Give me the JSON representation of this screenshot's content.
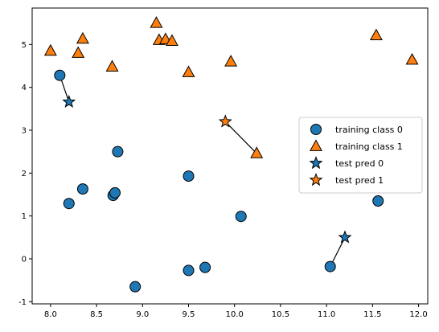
{
  "chart_data": {
    "type": "scatter",
    "title": "",
    "xlabel": "",
    "ylabel": "",
    "xlim": [
      7.8,
      12.1
    ],
    "ylim": [
      -1.05,
      5.85
    ],
    "xticks": [
      "8.0",
      "8.5",
      "9.0",
      "9.5",
      "10.0",
      "10.5",
      "11.0",
      "11.5",
      "12.0"
    ],
    "yticks": [
      "-1",
      "0",
      "1",
      "2",
      "3",
      "4",
      "5"
    ],
    "grid": false,
    "legend": {
      "placement": "center-right",
      "entries": [
        "training class 0",
        "training class 1",
        "test pred 0",
        "test pred 1"
      ]
    },
    "colors": {
      "class0": "#1f77b4",
      "class1": "#ff7f0e",
      "edge": "#000000"
    },
    "series": [
      {
        "name": "training class 0",
        "marker": "circle",
        "color": "#1f77b4",
        "points": [
          [
            8.1,
            4.28
          ],
          [
            8.2,
            1.29
          ],
          [
            8.35,
            1.63
          ],
          [
            8.68,
            1.48
          ],
          [
            8.7,
            1.54
          ],
          [
            8.73,
            2.5
          ],
          [
            8.92,
            -0.65
          ],
          [
            9.5,
            1.93
          ],
          [
            9.5,
            -0.27
          ],
          [
            9.68,
            -0.2
          ],
          [
            10.07,
            0.99
          ],
          [
            11.04,
            -0.18
          ],
          [
            11.56,
            1.35
          ]
        ]
      },
      {
        "name": "training class 1",
        "marker": "triangle",
        "color": "#ff7f0e",
        "points": [
          [
            8.0,
            4.85
          ],
          [
            8.3,
            4.8
          ],
          [
            8.35,
            5.13
          ],
          [
            8.67,
            4.48
          ],
          [
            9.15,
            5.5
          ],
          [
            9.18,
            5.1
          ],
          [
            9.25,
            5.12
          ],
          [
            9.32,
            5.08
          ],
          [
            9.5,
            4.35
          ],
          [
            9.96,
            4.6
          ],
          [
            10.24,
            2.46
          ],
          [
            11.54,
            5.21
          ],
          [
            11.93,
            4.64
          ]
        ]
      },
      {
        "name": "test pred 0",
        "marker": "star",
        "color": "#1f77b4",
        "points": [
          [
            8.2,
            3.66
          ],
          [
            11.2,
            0.5
          ]
        ]
      },
      {
        "name": "test pred 1",
        "marker": "star",
        "color": "#ff7f0e",
        "points": [
          [
            9.9,
            3.2
          ]
        ]
      }
    ],
    "neighbor_links": [
      [
        [
          8.2,
          3.66
        ],
        [
          8.1,
          4.28
        ]
      ],
      [
        [
          9.9,
          3.2
        ],
        [
          10.24,
          2.46
        ]
      ],
      [
        [
          11.2,
          0.5
        ],
        [
          11.04,
          -0.18
        ]
      ]
    ]
  }
}
